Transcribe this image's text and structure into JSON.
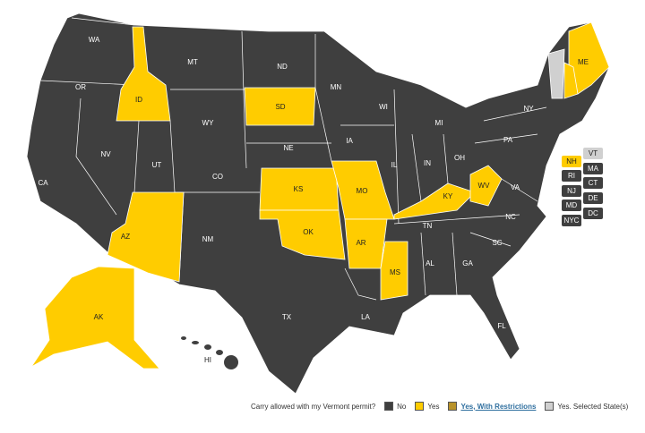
{
  "colors": {
    "no": "#3f3f3f",
    "yes": "#ffcc00",
    "restricted": "#b8922a",
    "selected": "#d0d0d0"
  },
  "states": [
    {
      "abbr": "WA",
      "status": "no"
    },
    {
      "abbr": "OR",
      "status": "no"
    },
    {
      "abbr": "CA",
      "status": "no"
    },
    {
      "abbr": "NV",
      "status": "no"
    },
    {
      "abbr": "ID",
      "status": "yes"
    },
    {
      "abbr": "MT",
      "status": "no"
    },
    {
      "abbr": "WY",
      "status": "no"
    },
    {
      "abbr": "UT",
      "status": "no"
    },
    {
      "abbr": "CO",
      "status": "no"
    },
    {
      "abbr": "AZ",
      "status": "yes"
    },
    {
      "abbr": "NM",
      "status": "no"
    },
    {
      "abbr": "ND",
      "status": "no"
    },
    {
      "abbr": "SD",
      "status": "yes"
    },
    {
      "abbr": "NE",
      "status": "no"
    },
    {
      "abbr": "KS",
      "status": "yes"
    },
    {
      "abbr": "OK",
      "status": "yes"
    },
    {
      "abbr": "TX",
      "status": "no"
    },
    {
      "abbr": "MN",
      "status": "no"
    },
    {
      "abbr": "IA",
      "status": "no"
    },
    {
      "abbr": "MO",
      "status": "yes"
    },
    {
      "abbr": "AR",
      "status": "yes"
    },
    {
      "abbr": "LA",
      "status": "no"
    },
    {
      "abbr": "WI",
      "status": "no"
    },
    {
      "abbr": "IL",
      "status": "no"
    },
    {
      "abbr": "MS",
      "status": "yes"
    },
    {
      "abbr": "MI",
      "status": "no"
    },
    {
      "abbr": "IN",
      "status": "no"
    },
    {
      "abbr": "OH",
      "status": "no"
    },
    {
      "abbr": "KY",
      "status": "yes"
    },
    {
      "abbr": "TN",
      "status": "no"
    },
    {
      "abbr": "AL",
      "status": "no"
    },
    {
      "abbr": "GA",
      "status": "no"
    },
    {
      "abbr": "FL",
      "status": "no"
    },
    {
      "abbr": "SC",
      "status": "no"
    },
    {
      "abbr": "NC",
      "status": "no"
    },
    {
      "abbr": "VA",
      "status": "no"
    },
    {
      "abbr": "WV",
      "status": "yes"
    },
    {
      "abbr": "PA",
      "status": "no"
    },
    {
      "abbr": "NY",
      "status": "no"
    },
    {
      "abbr": "ME",
      "status": "yes"
    },
    {
      "abbr": "AK",
      "status": "yes"
    },
    {
      "abbr": "HI",
      "status": "no"
    }
  ],
  "small_states": [
    {
      "abbr": "VT",
      "status": "selected"
    },
    {
      "abbr": "NH",
      "status": "yes"
    },
    {
      "abbr": "MA",
      "status": "no"
    },
    {
      "abbr": "RI",
      "status": "no"
    },
    {
      "abbr": "CT",
      "status": "no"
    },
    {
      "abbr": "NJ",
      "status": "no"
    },
    {
      "abbr": "DE",
      "status": "no"
    },
    {
      "abbr": "MD",
      "status": "no"
    },
    {
      "abbr": "DC",
      "status": "no"
    },
    {
      "abbr": "NYC",
      "status": "no"
    }
  ],
  "legend": {
    "question": "Carry allowed with my Vermont permit?",
    "no": "No",
    "yes": "Yes",
    "restricted": "Yes, With Restrictions",
    "selected": "Yes. Selected State(s)"
  }
}
